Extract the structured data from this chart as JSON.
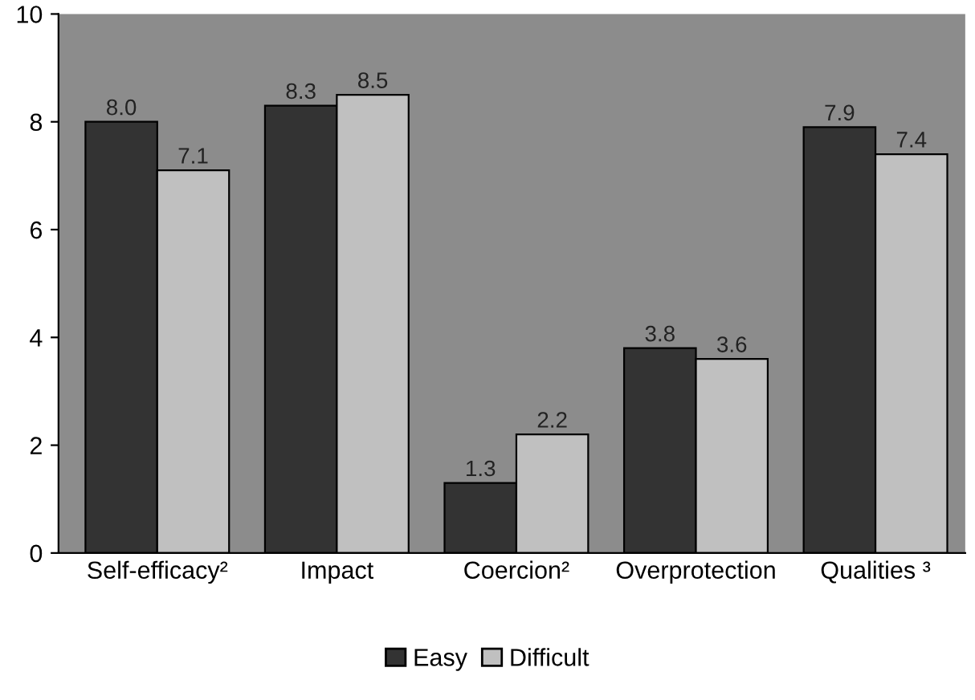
{
  "chart_data": {
    "type": "bar",
    "categories": [
      "Self-efficacy²",
      "Impact",
      "Coercion²",
      "Overprotection",
      "Qualities ³"
    ],
    "series": [
      {
        "name": "Easy",
        "color": "#333333",
        "values": [
          8.0,
          8.3,
          1.3,
          3.8,
          7.9
        ]
      },
      {
        "name": "Difficult",
        "color": "#c0c0c0",
        "values": [
          7.1,
          8.5,
          2.2,
          3.6,
          7.4
        ]
      }
    ],
    "value_labels": [
      [
        "8.0",
        "8.3",
        "1.3",
        "3.8",
        "7.9"
      ],
      [
        "7.1",
        "8.5",
        "2.2",
        "3.6",
        "7.4"
      ]
    ],
    "ylim": [
      0,
      10
    ],
    "yticks": [
      0,
      2,
      4,
      6,
      8,
      10
    ],
    "grid": false,
    "legend": "bottom"
  }
}
